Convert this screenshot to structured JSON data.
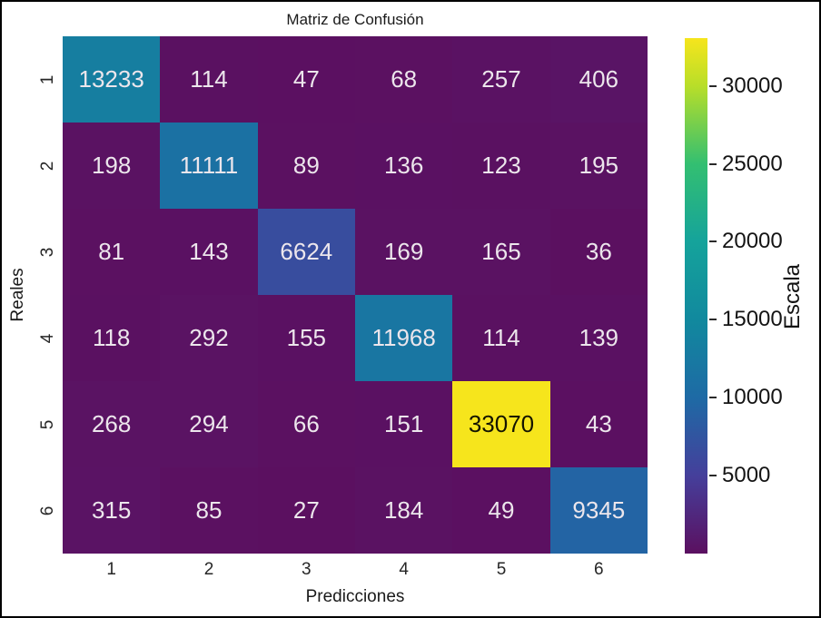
{
  "title": "Matriz de Confusión",
  "chart_data": {
    "type": "heatmap",
    "title": "Matriz de Confusión",
    "xlabel": "Predicciones",
    "ylabel": "Reales",
    "x_ticklabels": [
      "1",
      "2",
      "3",
      "4",
      "5",
      "6"
    ],
    "y_ticklabels": [
      "1",
      "2",
      "3",
      "4",
      "5",
      "6"
    ],
    "matrix": [
      [
        13233,
        114,
        47,
        68,
        257,
        406
      ],
      [
        198,
        11111,
        89,
        136,
        123,
        195
      ],
      [
        81,
        143,
        6624,
        169,
        165,
        36
      ],
      [
        118,
        292,
        155,
        11968,
        114,
        139
      ],
      [
        268,
        294,
        66,
        151,
        33070,
        43
      ],
      [
        315,
        85,
        27,
        184,
        49,
        9345
      ]
    ],
    "colorbar": {
      "label": "Escala",
      "ticks": [
        5000,
        10000,
        15000,
        20000,
        25000,
        30000
      ],
      "vmin": 0,
      "vmax": 33070,
      "colormap": "viridis",
      "stops": [
        {
          "t": 0.0,
          "color": "#5b1060"
        },
        {
          "t": 0.151,
          "color": "#453f9b"
        },
        {
          "t": 0.302,
          "color": "#1e6aa5"
        },
        {
          "t": 0.454,
          "color": "#11899e"
        },
        {
          "t": 0.605,
          "color": "#15a39b"
        },
        {
          "t": 0.756,
          "color": "#33bf71"
        },
        {
          "t": 0.907,
          "color": "#b8de29"
        },
        {
          "t": 1.0,
          "color": "#f6e51c"
        }
      ]
    },
    "legend_position": "right-colorbar",
    "grid": false,
    "cell_text_color_light": "#ece6ec",
    "cell_text_color_dark": "#141400"
  }
}
